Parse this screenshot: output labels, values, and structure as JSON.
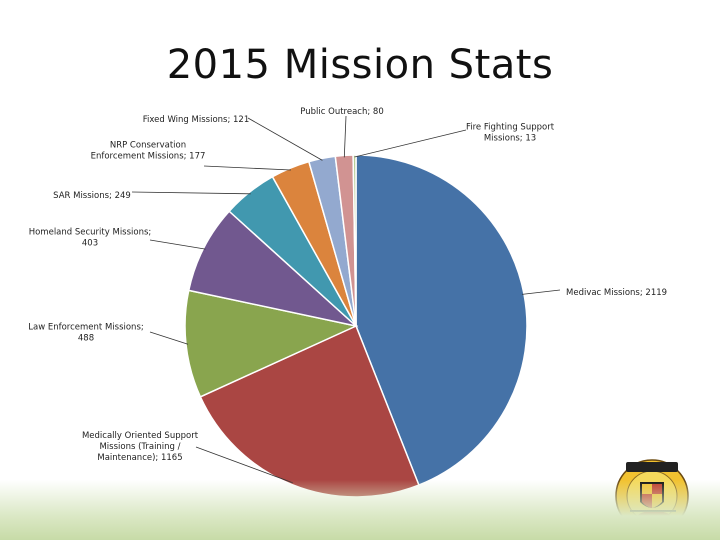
{
  "slide": {
    "title": "2015 Mission Stats"
  },
  "logo": {
    "text_top": "MARYLAND STATE POLICE",
    "text_left": "AVIATION",
    "text_right": "COMMAND",
    "colors": {
      "ring": "#f2c230",
      "body": "#f5d95c",
      "shield": "#111111",
      "heli": "#b03025"
    }
  },
  "chart_data": {
    "type": "pie",
    "title": "",
    "series": [
      {
        "label": "Medivac Missions",
        "value": 2119,
        "label_text": "Medivac Missions; 2119",
        "color": "#4572a7"
      },
      {
        "label": "Medically Oriented Support Missions (Training / Maintenance)",
        "value": 1165,
        "label_lines": [
          "Medically Oriented Support",
          "Missions (Training /",
          "Maintenance); 1165"
        ],
        "color": "#aa4643"
      },
      {
        "label": "Law Enforcement Missions",
        "value": 488,
        "label_lines": [
          "Law Enforcement Missions;",
          "488"
        ],
        "color": "#89a54e"
      },
      {
        "label": "Homeland Security Missions",
        "value": 403,
        "label_lines": [
          "Homeland Security Missions;",
          "403"
        ],
        "color": "#71588f"
      },
      {
        "label": "SAR Missions",
        "value": 249,
        "label_lines": [
          "SAR Missions; 249"
        ],
        "color": "#4198af"
      },
      {
        "label": "NRP Conservation Enforcement Missions",
        "value": 177,
        "label_lines": [
          "NRP Conservation",
          "Enforcement Missions; 177"
        ],
        "color": "#db843d"
      },
      {
        "label": "Fixed Wing Missions",
        "value": 121,
        "label_lines": [
          "Fixed Wing Missions; 121"
        ],
        "color": "#93a9cf"
      },
      {
        "label": "Public Outreach",
        "value": 80,
        "label_lines": [
          "Public Outreach; 80"
        ],
        "color": "#d19392"
      },
      {
        "label": "Fire Fighting Support Missions",
        "value": 13,
        "label_lines": [
          "Fire Fighting Support",
          "Missions; 13"
        ],
        "color": "#b9cd96"
      }
    ]
  }
}
